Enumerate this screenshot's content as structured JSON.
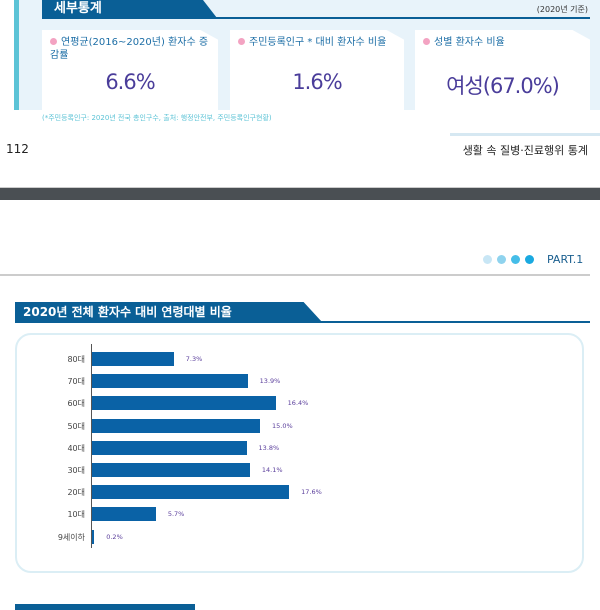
{
  "page1": {
    "section_title": "세부통계",
    "basis": "(2020년 기준)",
    "cards": [
      {
        "label": "연평균(2016~2020년) 환자수 증감률",
        "value": "6.6%"
      },
      {
        "label": "주민등록인구 * 대비 환자수 비율",
        "value": "1.6%"
      },
      {
        "label": "성별 환자수 비율",
        "value": "여성(67.0%)"
      }
    ],
    "footnote": "(*주민등록인구: 2020년 전국 총인구수, 출처: 행정안전부, 주민등록인구현황)",
    "page_number": "112",
    "book_title": "생활 속 질병·진료행위 통계"
  },
  "page2": {
    "part": "PART.1",
    "dot_colors": [
      "#c8e6f5",
      "#8fd3ee",
      "#45bde8",
      "#1aa9e0"
    ]
  },
  "chart_data": {
    "type": "bar",
    "orientation": "horizontal",
    "title": "2020년 전체 환자수 대비 연령대별 비율",
    "categories": [
      "80대",
      "70대",
      "60대",
      "50대",
      "40대",
      "30대",
      "20대",
      "10대",
      "9세이하"
    ],
    "values": [
      7.3,
      13.9,
      16.4,
      15.0,
      13.8,
      14.1,
      17.6,
      5.7,
      0.2
    ],
    "data_labels": [
      "7.3%",
      "13.9%",
      "16.4%",
      "15.0%",
      "13.8%",
      "14.1%",
      "17.6%",
      "5.7%",
      "0.2%"
    ],
    "unit": "%",
    "bar_color": "#0a62a6",
    "grid": false
  }
}
